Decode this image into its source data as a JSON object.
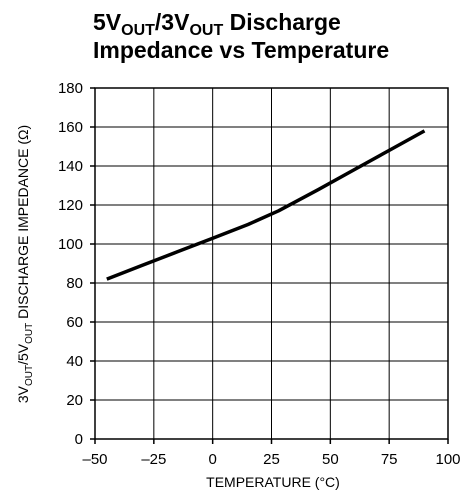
{
  "chart_data": {
    "type": "line",
    "title": {
      "line1": [
        {
          "text": "5V",
          "sub": false
        },
        {
          "text": "OUT",
          "sub": true
        },
        {
          "text": "/3V",
          "sub": false
        },
        {
          "text": "OUT",
          "sub": true
        },
        {
          "text": " Discharge",
          "sub": false
        }
      ],
      "line2": "Impedance vs Temperature"
    },
    "xlabel": "TEMPERATURE (°C)",
    "ylabel": [
      {
        "text": "3V",
        "sub": false
      },
      {
        "text": "OUT",
        "sub": true
      },
      {
        "text": "/5V",
        "sub": false
      },
      {
        "text": "OUT",
        "sub": true
      },
      {
        "text": " DISCHARGE IMPEDANCE (Ω)",
        "sub": false
      }
    ],
    "xlim": [
      -50,
      100
    ],
    "ylim": [
      0,
      180
    ],
    "xticks": [
      -50,
      -25,
      0,
      25,
      50,
      75,
      100
    ],
    "xtick_labels": [
      "–50",
      "–25",
      "0",
      "25",
      "50",
      "75",
      "100"
    ],
    "yticks": [
      0,
      20,
      40,
      60,
      80,
      100,
      120,
      140,
      160,
      180
    ],
    "ytick_labels": [
      "0",
      "20",
      "40",
      "60",
      "80",
      "100",
      "120",
      "140",
      "160",
      "180"
    ],
    "grid": true,
    "series": [
      {
        "color": "#000000",
        "x": [
          -45,
          -30,
          -15,
          0,
          15,
          28,
          45,
          60,
          75,
          90
        ],
        "y": [
          82,
          89,
          96,
          103,
          110,
          117,
          128,
          138,
          148,
          158
        ]
      }
    ]
  }
}
